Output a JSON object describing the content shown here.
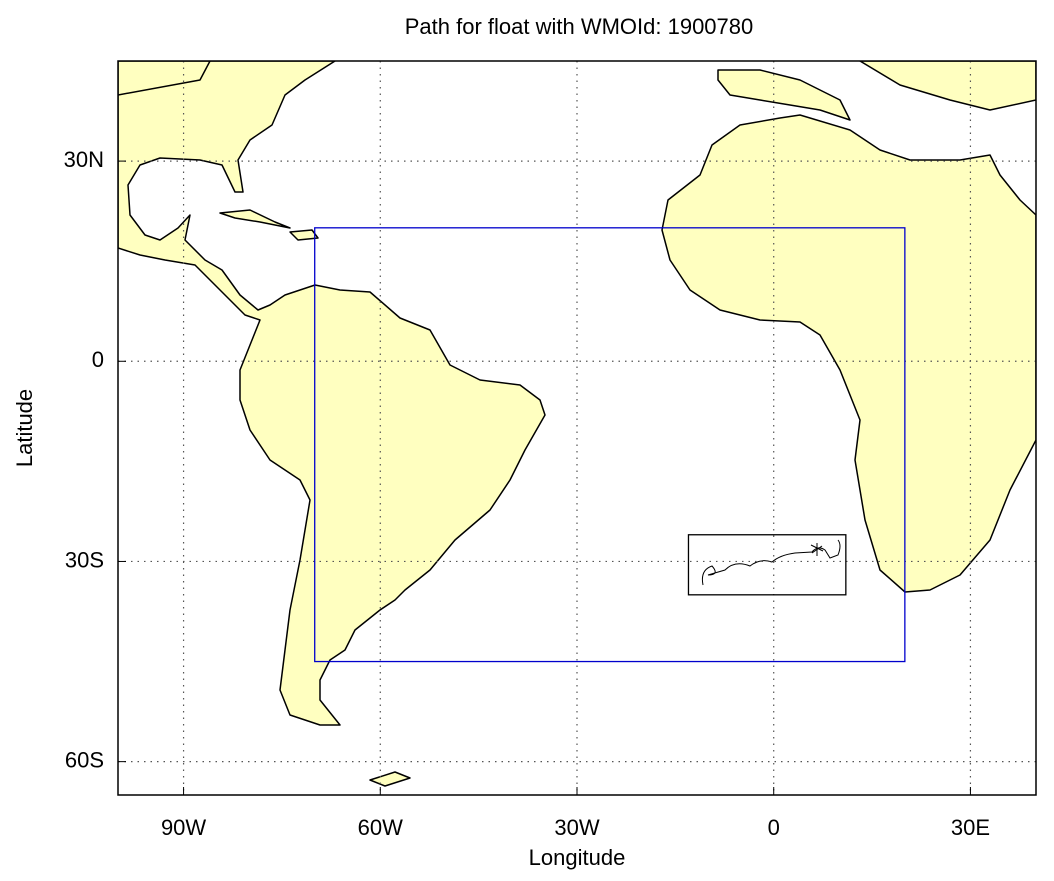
{
  "chart_data": {
    "type": "map",
    "title": "Path for float with WMOId: 1900780",
    "x_label": "Longitude",
    "y_label": "Latitude",
    "xlim": [
      -100,
      40
    ],
    "ylim": [
      -65,
      45
    ],
    "xticks": [
      {
        "value": -90,
        "label": "90W"
      },
      {
        "value": -60,
        "label": "60W"
      },
      {
        "value": -30,
        "label": "30W"
      },
      0,
      {
        "value": 30,
        "label": "30E"
      }
    ],
    "yticks": [
      {
        "value": 30,
        "label": "30N"
      },
      0,
      {
        "value": -30,
        "label": "30S"
      },
      {
        "value": -60,
        "label": "60S"
      }
    ],
    "grid": true,
    "land_color": "#ffffc0",
    "region": {
      "color": "#0000cc",
      "lon": [
        -70,
        20
      ],
      "lat": [
        -45,
        20
      ]
    },
    "path_box": {
      "color": "#000000",
      "lon": [
        -13,
        11
      ],
      "lat": [
        -35,
        -26
      ]
    }
  }
}
